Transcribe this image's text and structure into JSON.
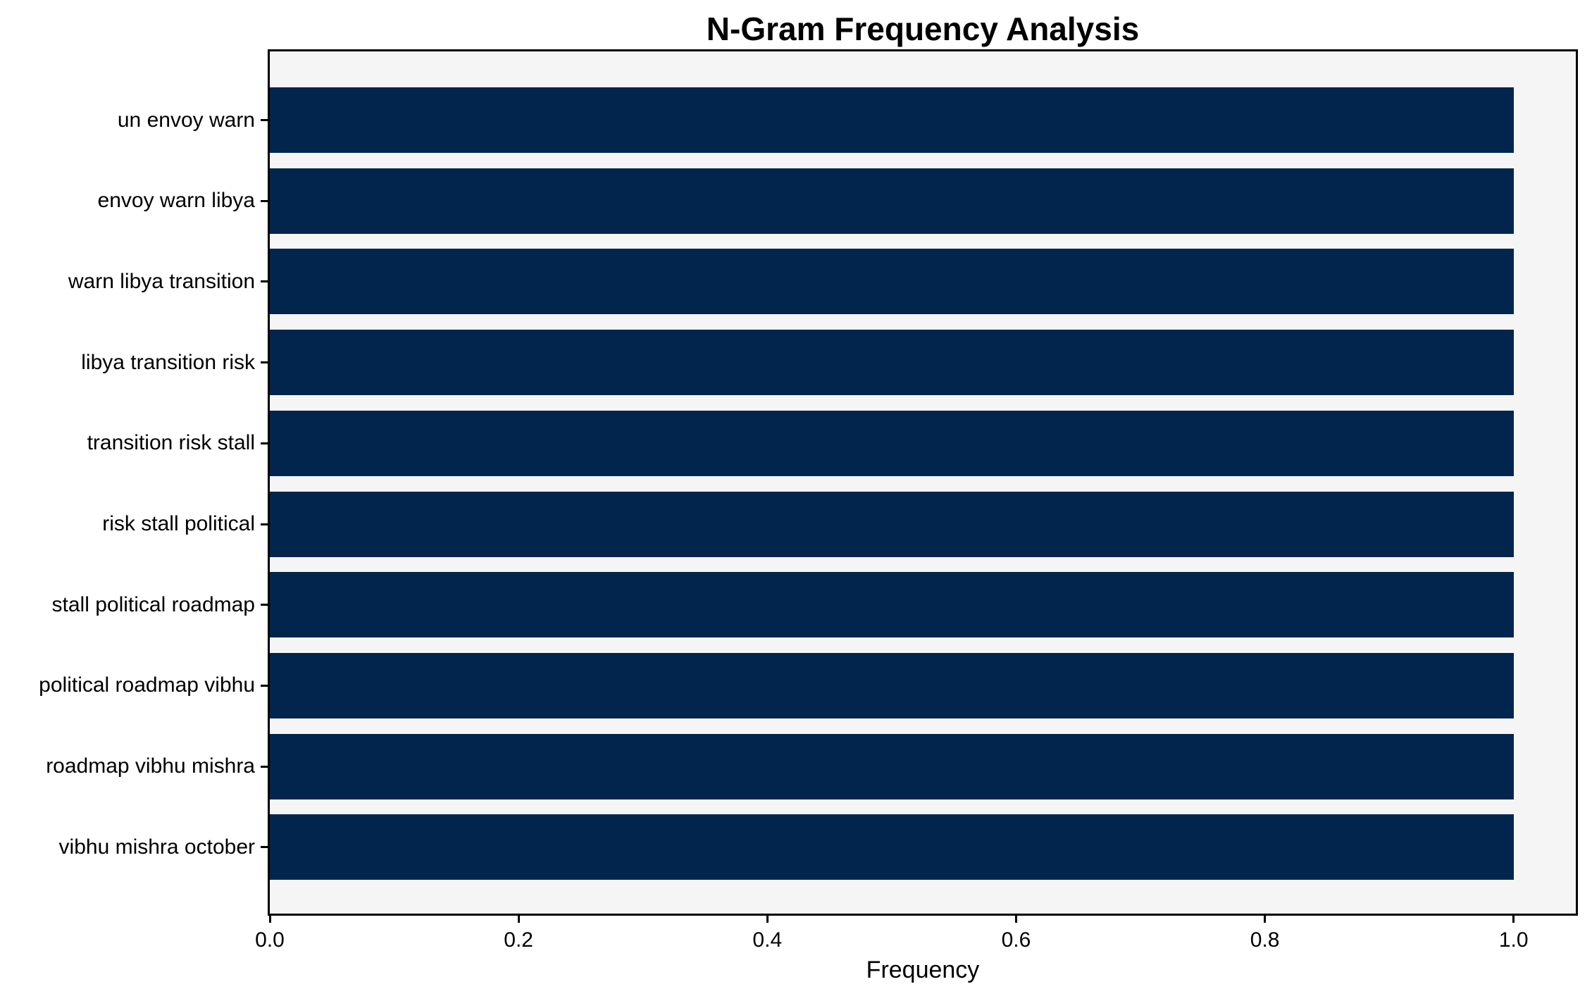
{
  "chart_data": {
    "type": "bar",
    "orientation": "horizontal",
    "title": "N-Gram Frequency Analysis",
    "xlabel": "Frequency",
    "ylabel": "",
    "categories": [
      "un envoy warn",
      "envoy warn libya",
      "warn libya transition",
      "libya transition risk",
      "transition risk stall",
      "risk stall political",
      "stall political roadmap",
      "political roadmap vibhu",
      "roadmap vibhu mishra",
      "vibhu mishra october"
    ],
    "values": [
      1.0,
      1.0,
      1.0,
      1.0,
      1.0,
      1.0,
      1.0,
      1.0,
      1.0,
      1.0
    ],
    "xlim": [
      0,
      1.05
    ],
    "x_ticks": [
      0.0,
      0.2,
      0.4,
      0.6,
      0.8,
      1.0
    ],
    "x_tick_labels": [
      "0.0",
      "0.2",
      "0.4",
      "0.6",
      "0.8",
      "1.0"
    ],
    "grid": false,
    "legend": null,
    "colors": {
      "bar": "#02254d",
      "plot_background": "#f5f5f5",
      "figure_background": "#ffffff",
      "spine": "#000000",
      "text": "#000000"
    }
  }
}
